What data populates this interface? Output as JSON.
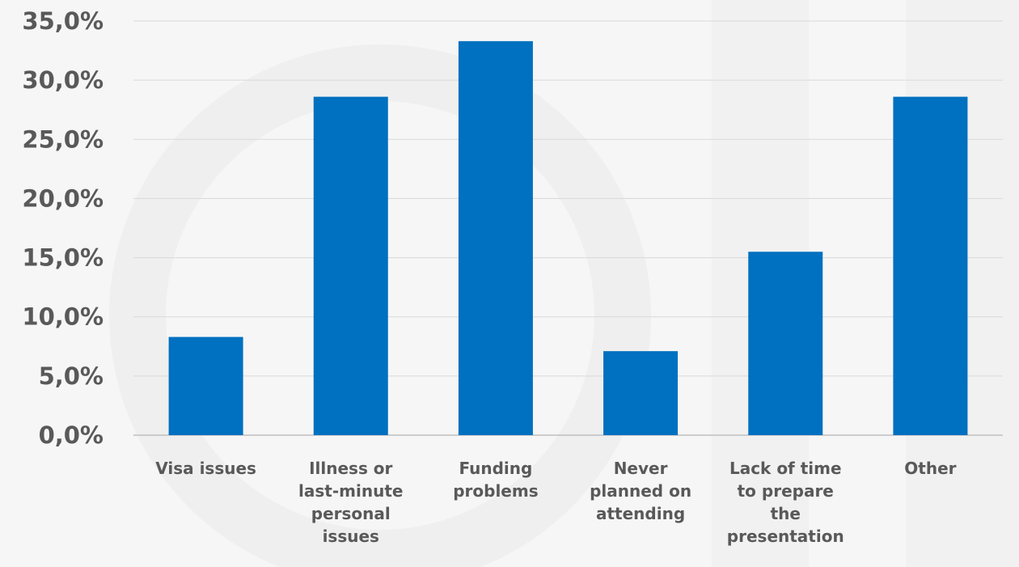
{
  "chart_data": {
    "type": "bar",
    "title": "",
    "xlabel": "",
    "ylabel": "",
    "categories": [
      [
        "Visa issues"
      ],
      [
        "Illness or",
        "last-minute",
        "personal",
        "issues"
      ],
      [
        "Funding",
        "problems"
      ],
      [
        "Never",
        "planned on",
        "attending"
      ],
      [
        "Lack of time",
        "to prepare",
        "the",
        "presentation"
      ],
      [
        "Other"
      ]
    ],
    "values": [
      8.3,
      28.6,
      33.3,
      7.1,
      15.5,
      28.6
    ],
    "ylim": [
      0,
      35
    ],
    "yticks": [
      0,
      5,
      10,
      15,
      20,
      25,
      30,
      35
    ],
    "ytick_labels": [
      "0,0%",
      "5,0%",
      "10,0%",
      "15,0%",
      "20,0%",
      "25,0%",
      "30,0%",
      "35,0%"
    ],
    "grid": true,
    "legend": "none",
    "bar_color": "#0070c0",
    "grid_color": "#d9d9d9",
    "text_color": "#595959"
  }
}
